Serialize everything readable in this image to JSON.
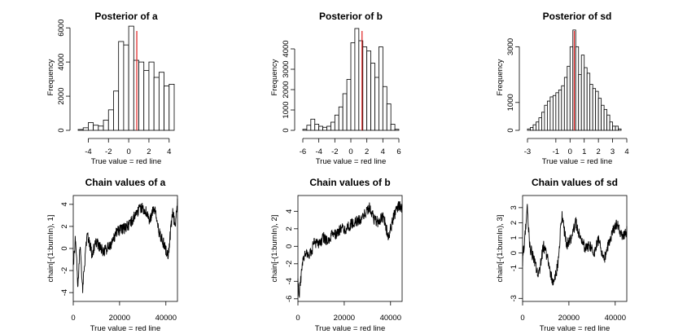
{
  "colors": {
    "bar_fill": "#ffffff",
    "bar_stroke": "#000000",
    "true_line": "#df2020",
    "trace": "#000000"
  },
  "chart_data": [
    {
      "type": "bar",
      "title": "Posterior of a",
      "xlabel": "True value = red line",
      "ylabel": "Frequency",
      "xlim": [
        -5,
        4.5
      ],
      "ylim": [
        0,
        6200
      ],
      "xticks": [
        "-4",
        "-2",
        "0",
        "2",
        "4"
      ],
      "yticks": [
        "0",
        "2000",
        "4000",
        "6000"
      ],
      "bin_edges": [
        -5,
        -4.5,
        -4,
        -3.5,
        -3,
        -2.5,
        -2,
        -1.5,
        -1,
        -0.5,
        0,
        0.5,
        1,
        1.5,
        2,
        2.5,
        3,
        3.5,
        4,
        4.5
      ],
      "values": [
        50,
        150,
        450,
        300,
        250,
        600,
        1200,
        2300,
        5200,
        5000,
        6100,
        4100,
        4000,
        3500,
        4000,
        3100,
        3400,
        2600,
        2700
      ],
      "true_value": 0.8
    },
    {
      "type": "bar",
      "title": "Posterior of b",
      "xlabel": "True value = red line",
      "ylabel": "Frequency",
      "xlim": [
        -6,
        6
      ],
      "ylim": [
        0,
        5200
      ],
      "xticks": [
        "-6",
        "-4",
        "-2",
        "0",
        "2",
        "4",
        "6"
      ],
      "yticks": [
        "0",
        "1000",
        "2000",
        "3000",
        "4000"
      ],
      "bin_edges": [
        -6,
        -5.5,
        -5,
        -4.5,
        -4,
        -3.5,
        -3,
        -2.5,
        -2,
        -1.5,
        -1,
        -0.5,
        0,
        0.5,
        1,
        1.5,
        2,
        2.5,
        3,
        3.5,
        4,
        4.5,
        5,
        5.5,
        6
      ],
      "values": [
        50,
        250,
        550,
        300,
        200,
        150,
        200,
        400,
        750,
        1150,
        1800,
        2500,
        4300,
        5000,
        4400,
        4100,
        3900,
        3300,
        2600,
        4100,
        2150,
        1300,
        300,
        50
      ],
      "true_value": 1.4
    },
    {
      "type": "bar",
      "title": "Posterior of sd",
      "xlabel": "True value = red line",
      "ylabel": "Frequency",
      "xlim": [
        -3,
        4
      ],
      "ylim": [
        0,
        3800
      ],
      "xticks": [
        "-3",
        "-1",
        "0",
        "1",
        "2",
        "3",
        "4"
      ],
      "yticks": [
        "0",
        "1000",
        "3000"
      ],
      "bin_edges": [
        -3,
        -2.8,
        -2.6,
        -2.4,
        -2.2,
        -2,
        -1.8,
        -1.6,
        -1.4,
        -1.2,
        -1,
        -0.8,
        -0.6,
        -0.4,
        -0.2,
        0,
        0.2,
        0.4,
        0.6,
        0.8,
        1,
        1.2,
        1.4,
        1.6,
        1.8,
        2,
        2.2,
        2.4,
        2.6,
        2.8,
        3,
        3.2,
        3.4,
        3.6
      ],
      "values": [
        50,
        100,
        200,
        300,
        450,
        650,
        900,
        1050,
        1200,
        1250,
        1350,
        1450,
        1600,
        1900,
        2300,
        3000,
        3600,
        3000,
        2000,
        2700,
        2250,
        2050,
        1650,
        1500,
        1400,
        1150,
        900,
        750,
        550,
        300,
        150,
        150,
        50
      ],
      "true_value": 0.3
    },
    {
      "type": "line",
      "title": "Chain values of a",
      "xlabel": "True value = red line",
      "ylabel": "chain[-(1:burnIn), 1]",
      "xlim": [
        0,
        45000
      ],
      "ylim": [
        -4.8,
        4.8
      ],
      "xticks": [
        "0",
        "20000",
        "40000"
      ],
      "xtick_values": [
        0,
        20000,
        40000
      ],
      "yticks": [
        "-4",
        "-2",
        "0",
        "2",
        "4"
      ],
      "ytick_values": [
        -4,
        -2,
        0,
        2,
        4
      ],
      "x": [
        0,
        1000,
        2000,
        3000,
        4000,
        6000,
        8000,
        10000,
        13000,
        16000,
        19000,
        22000,
        25000,
        27000,
        29000,
        31000,
        33000,
        35000,
        37000,
        39000,
        41000,
        42000,
        43000,
        44000,
        45000
      ],
      "y": [
        -1.5,
        1.0,
        -3.5,
        0.5,
        -3.8,
        1.5,
        -0.5,
        0.6,
        -0.3,
        0.3,
        1.6,
        1.8,
        2.3,
        3.2,
        3.7,
        3.5,
        2.5,
        3.7,
        1.5,
        0.5,
        -0.7,
        1.5,
        3.2,
        2.0,
        4.0
      ]
    },
    {
      "type": "line",
      "title": "Chain values of b",
      "xlabel": "True value = red line",
      "ylabel": "chain[-(1:burnIn), 2]",
      "xlim": [
        0,
        45000
      ],
      "ylim": [
        -6.3,
        5.8
      ],
      "xticks": [
        "0",
        "20000",
        "40000"
      ],
      "xtick_values": [
        0,
        20000,
        40000
      ],
      "yticks": [
        "-6",
        "-4",
        "-2",
        "0",
        "2",
        "4"
      ],
      "ytick_values": [
        -6,
        -4,
        -2,
        0,
        2,
        4
      ],
      "x": [
        0,
        500,
        1500,
        3000,
        5000,
        7000,
        9000,
        11000,
        13000,
        15000,
        17000,
        19000,
        21000,
        23000,
        25000,
        27000,
        29000,
        31000,
        33000,
        35000,
        37000,
        39000,
        41000,
        43000,
        45000
      ],
      "y": [
        -4.0,
        -5.6,
        -3.0,
        -0.5,
        -1.0,
        0.3,
        0.2,
        1.0,
        0.5,
        1.3,
        1.5,
        2.0,
        2.0,
        2.5,
        2.8,
        3.0,
        3.8,
        4.5,
        3.0,
        2.8,
        3.5,
        1.0,
        3.0,
        4.5,
        4.5
      ]
    },
    {
      "type": "line",
      "title": "Chain values of sd",
      "xlabel": "True value = red line",
      "ylabel": "chain[-(1:burnIn), 3]",
      "xlim": [
        0,
        45000
      ],
      "ylim": [
        -3.2,
        3.8
      ],
      "xticks": [
        "0",
        "20000",
        "40000"
      ],
      "xtick_values": [
        0,
        20000,
        40000
      ],
      "yticks": [
        "-3",
        "-1",
        "0",
        "1",
        "2",
        "3"
      ],
      "ytick_values": [
        -3,
        -1,
        0,
        1,
        2,
        3
      ],
      "x": [
        0,
        1000,
        2000,
        3000,
        5000,
        7000,
        9000,
        11000,
        13000,
        15000,
        17000,
        19000,
        21000,
        23000,
        25000,
        27000,
        29000,
        31000,
        33000,
        35000,
        37000,
        39000,
        41000,
        43000,
        45000
      ],
      "y": [
        -0.5,
        1.0,
        3.3,
        0.5,
        -0.5,
        -1.5,
        0.5,
        -0.5,
        -2.0,
        -1.0,
        2.5,
        0.5,
        1.0,
        2.0,
        1.0,
        0.3,
        0.5,
        0.0,
        1.0,
        -0.5,
        0.5,
        1.5,
        2.0,
        1.0,
        1.5
      ]
    }
  ]
}
